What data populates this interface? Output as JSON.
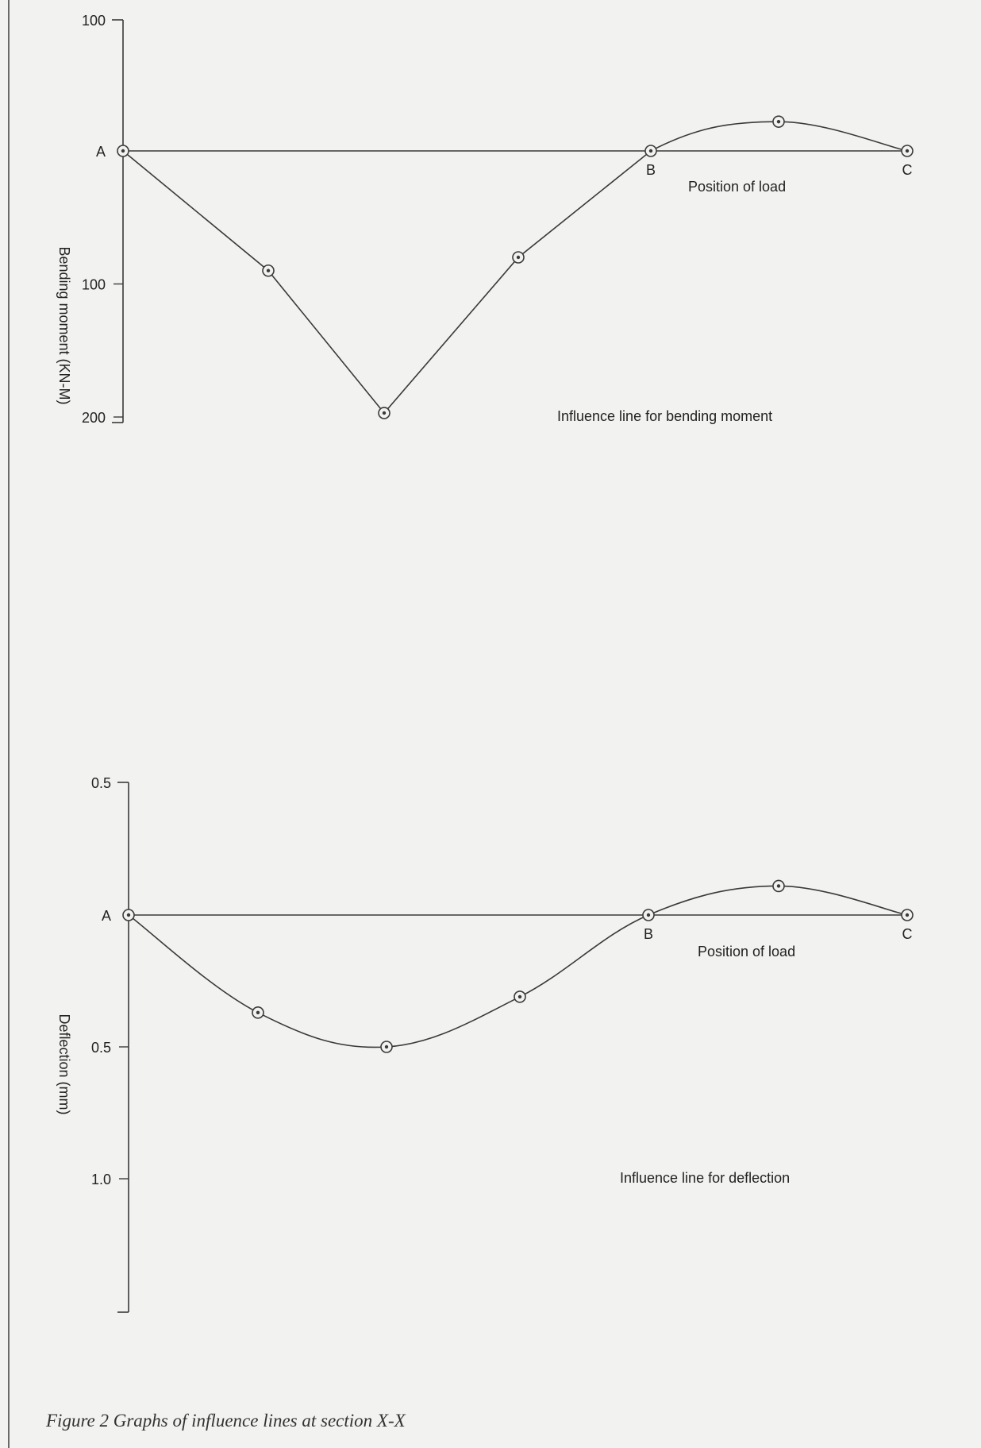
{
  "caption": "Figure 2 Graphs of influence lines at section X-X",
  "colors": {
    "line": "#3a3a3a",
    "text": "#222222",
    "background": "#f2f2f0"
  },
  "chart_data": [
    {
      "type": "line",
      "title": "Influence line for bending moment",
      "xlabel": "Position of load",
      "ylabel": "Bending moment (KN-M)",
      "y_ticks": [
        "A",
        "100",
        "200"
      ],
      "y_tick_values": [
        0,
        100,
        200
      ],
      "ylim": [
        -100,
        200
      ],
      "y_direction": "downward positive",
      "top_tick_label": "100",
      "support_labels": [
        "A",
        "B",
        "C"
      ],
      "points": [
        {
          "x": 0,
          "y": 0,
          "label": "A"
        },
        {
          "x": 1,
          "y": 90
        },
        {
          "x": 2,
          "y": 197
        },
        {
          "x": 3,
          "y": 80
        },
        {
          "x": 4,
          "y": 0,
          "label": "B"
        },
        {
          "x": 5,
          "y": -22
        },
        {
          "x": 6,
          "y": 0,
          "label": "C"
        }
      ],
      "grid": false,
      "legend": "none"
    },
    {
      "type": "line",
      "title": "Influence line for deflection",
      "xlabel": "Position of load",
      "ylabel": "Deflection (mm)",
      "y_ticks": [
        "A",
        "0.5",
        "1.0"
      ],
      "y_tick_values": [
        0,
        0.5,
        1.0
      ],
      "ylim": [
        -0.5,
        1.0
      ],
      "y_direction": "downward positive",
      "top_tick_label": "0.5",
      "support_labels": [
        "A",
        "B",
        "C"
      ],
      "points": [
        {
          "x": 0,
          "y": 0,
          "label": "A"
        },
        {
          "x": 1,
          "y": 0.37
        },
        {
          "x": 2,
          "y": 0.5
        },
        {
          "x": 3,
          "y": 0.31
        },
        {
          "x": 4,
          "y": 0,
          "label": "B"
        },
        {
          "x": 5,
          "y": -0.11
        },
        {
          "x": 6,
          "y": 0,
          "label": "C"
        }
      ],
      "grid": false,
      "legend": "none"
    }
  ]
}
